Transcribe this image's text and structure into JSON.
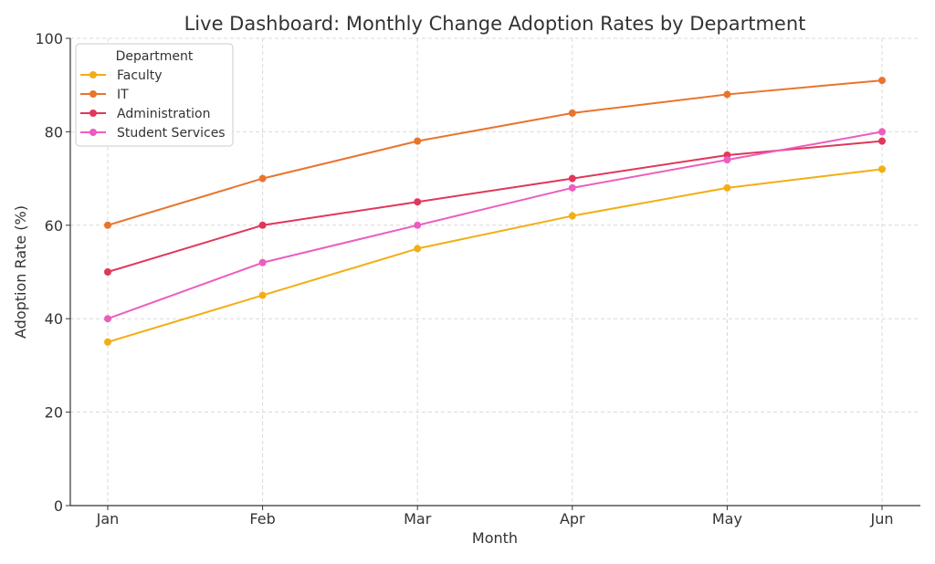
{
  "chart_data": {
    "type": "line",
    "title": "Live Dashboard: Monthly Change Adoption Rates by Department",
    "xlabel": "Month",
    "ylabel": "Adoption Rate (%)",
    "categories": [
      "Jan",
      "Feb",
      "Mar",
      "Apr",
      "May",
      "Jun"
    ],
    "ylim": [
      0,
      100
    ],
    "yticks": [
      0,
      20,
      40,
      60,
      80,
      100
    ],
    "grid": true,
    "legend_title": "Department",
    "legend_position": "top-left",
    "series": [
      {
        "name": "Faculty",
        "color": "#F2AE14",
        "values": [
          35,
          45,
          55,
          62,
          68,
          72
        ]
      },
      {
        "name": "IT",
        "color": "#E8742E",
        "values": [
          60,
          70,
          78,
          84,
          88,
          91
        ]
      },
      {
        "name": "Administration",
        "color": "#E0375A",
        "values": [
          50,
          60,
          65,
          70,
          75,
          78
        ]
      },
      {
        "name": "Student Services",
        "color": "#EC5DBF",
        "values": [
          40,
          52,
          60,
          68,
          74,
          80
        ]
      }
    ]
  }
}
